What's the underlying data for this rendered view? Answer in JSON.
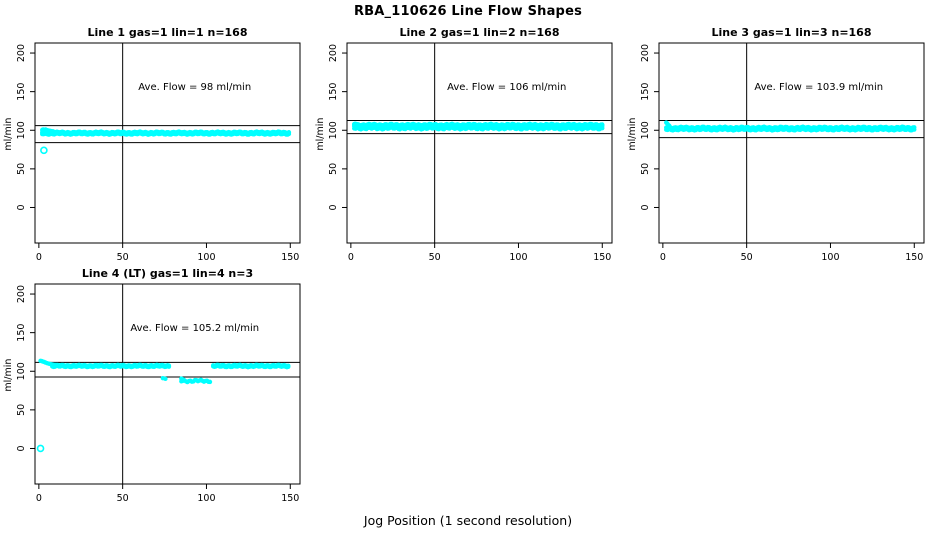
{
  "main_title": "RBA_110626  Line Flow Shapes",
  "x_axis_title": "Jog Position (1 second resolution)",
  "colors": {
    "point": "#00ffff",
    "axis": "#000000",
    "background": "#ffffff",
    "text": "#000000"
  },
  "chart_data": [
    {
      "type": "scatter",
      "title": "Line 1 gas=1 lin=1 n=168",
      "gas": 1,
      "lin": 1,
      "n": 168,
      "annotation": "Ave. Flow =  98  ml/min",
      "ave_flow_ml_min": 98,
      "ylabel": "ml/min",
      "xticks": [
        0,
        50,
        100,
        150
      ],
      "yticks": [
        0,
        50,
        100,
        150,
        200
      ],
      "xlim": [
        -2.3,
        155.8
      ],
      "ylim": [
        -46,
        213
      ],
      "vline_x": 50,
      "hlines": [
        106,
        84
      ],
      "annotation_at": [
        93,
        152
      ],
      "band_segments": [
        {
          "x0": 2,
          "x1": 149.5,
          "step": 0.8,
          "y": 95.2,
          "amp": 0.9
        },
        {
          "x0": 2,
          "x1": 149.5,
          "step": 0.8,
          "y": 97.4,
          "amp": 0.9
        }
      ],
      "extra_points": [
        [
          2,
          100.5
        ],
        [
          2.6,
          101
        ],
        [
          3.2,
          100.6
        ],
        [
          4,
          101
        ],
        [
          4.8,
          100.2
        ],
        [
          5.6,
          99.8
        ],
        [
          6.5,
          99.4
        ],
        [
          7.5,
          99.0
        ],
        [
          8.5,
          98.6
        ]
      ],
      "open_points": [
        [
          3,
          74
        ]
      ]
    },
    {
      "type": "scatter",
      "title": "Line 2 gas=1 lin=2 n=168",
      "gas": 1,
      "lin": 2,
      "n": 168,
      "annotation": "Ave. Flow =  106  ml/min",
      "ave_flow_ml_min": 106,
      "ylabel": "ml/min",
      "xticks": [
        0,
        50,
        100,
        150
      ],
      "yticks": [
        0,
        50,
        100,
        150,
        200
      ],
      "xlim": [
        -2.3,
        155.8
      ],
      "ylim": [
        -46,
        213
      ],
      "vline_x": 50,
      "hlines": [
        112.7,
        95.6
      ],
      "annotation_at": [
        93,
        152
      ],
      "band_segments": [
        {
          "x0": 2,
          "x1": 150,
          "step": 0.8,
          "y": 102.5,
          "amp": 1.4
        },
        {
          "x0": 2,
          "x1": 150,
          "step": 0.8,
          "y": 105.5,
          "amp": 1.2
        },
        {
          "x0": 2,
          "x1": 150,
          "step": 0.8,
          "y": 107.3,
          "amp": 1.0
        }
      ],
      "extra_points": [
        [
          2,
          108
        ],
        [
          2.6,
          108.5
        ],
        [
          3.4,
          108
        ]
      ],
      "open_points": []
    },
    {
      "type": "scatter",
      "title": "Line 3 gas=1 lin=3 n=168",
      "gas": 1,
      "lin": 3,
      "n": 168,
      "annotation": "Ave. Flow =  103.9  ml/min",
      "ave_flow_ml_min": 103.9,
      "ylabel": "ml/min",
      "xticks": [
        0,
        50,
        100,
        150
      ],
      "yticks": [
        0,
        50,
        100,
        150,
        200
      ],
      "xlim": [
        -2.3,
        155.8
      ],
      "ylim": [
        -46,
        213
      ],
      "vline_x": 50,
      "hlines": [
        112.7,
        90.5
      ],
      "annotation_at": [
        93,
        152
      ],
      "band_segments": [
        {
          "x0": 2,
          "x1": 150,
          "step": 0.8,
          "y": 100.8,
          "amp": 1.0
        },
        {
          "x0": 2,
          "x1": 150,
          "step": 0.8,
          "y": 103.6,
          "amp": 1.0
        }
      ],
      "extra_points": [
        [
          2,
          110
        ],
        [
          2.5,
          109
        ],
        [
          3,
          107.5
        ],
        [
          3.8,
          106
        ]
      ],
      "open_points": []
    },
    {
      "type": "scatter",
      "title": "Line 4 (LT) gas=1 lin=4 n=3",
      "gas": 1,
      "lin": 4,
      "n": 3,
      "annotation": "Ave. Flow =  105.2  ml/min",
      "ave_flow_ml_min": 105.2,
      "ylabel": "ml/min",
      "xticks": [
        0,
        50,
        100,
        150
      ],
      "yticks": [
        0,
        50,
        100,
        150,
        200
      ],
      "xlim": [
        -2.3,
        155.8
      ],
      "ylim": [
        -46,
        213
      ],
      "vline_x": 50,
      "hlines": [
        111.5,
        92.5
      ],
      "annotation_at": [
        93,
        152
      ],
      "band_segments": [
        {
          "x0": 8,
          "x1": 78,
          "step": 0.8,
          "y": 106.2,
          "amp": 0.9
        },
        {
          "x0": 8,
          "x1": 78,
          "step": 0.8,
          "y": 107.6,
          "amp": 0.8
        },
        {
          "x0": 104,
          "x1": 149.5,
          "step": 0.8,
          "y": 106.2,
          "amp": 0.9
        },
        {
          "x0": 104,
          "x1": 149.5,
          "step": 0.8,
          "y": 107.6,
          "amp": 0.8
        },
        {
          "x0": 85,
          "x1": 103,
          "step": 0.9,
          "y": 87.5,
          "amp": 1.6
        }
      ],
      "extra_points": [
        [
          1,
          113.5
        ],
        [
          1.7,
          113.2
        ],
        [
          2.4,
          112.6
        ],
        [
          3.2,
          112
        ],
        [
          4,
          111.2
        ],
        [
          5,
          110.4
        ],
        [
          6,
          109.8
        ],
        [
          7,
          109.3
        ],
        [
          8.2,
          108.8
        ],
        [
          9.5,
          108.3
        ],
        [
          11,
          108
        ],
        [
          13,
          107.8
        ],
        [
          15,
          107.5
        ],
        [
          74,
          91
        ],
        [
          75.5,
          90.2
        ],
        [
          85,
          90.5
        ],
        [
          86,
          89.5
        ]
      ],
      "open_points": [
        [
          1,
          0
        ]
      ]
    }
  ]
}
